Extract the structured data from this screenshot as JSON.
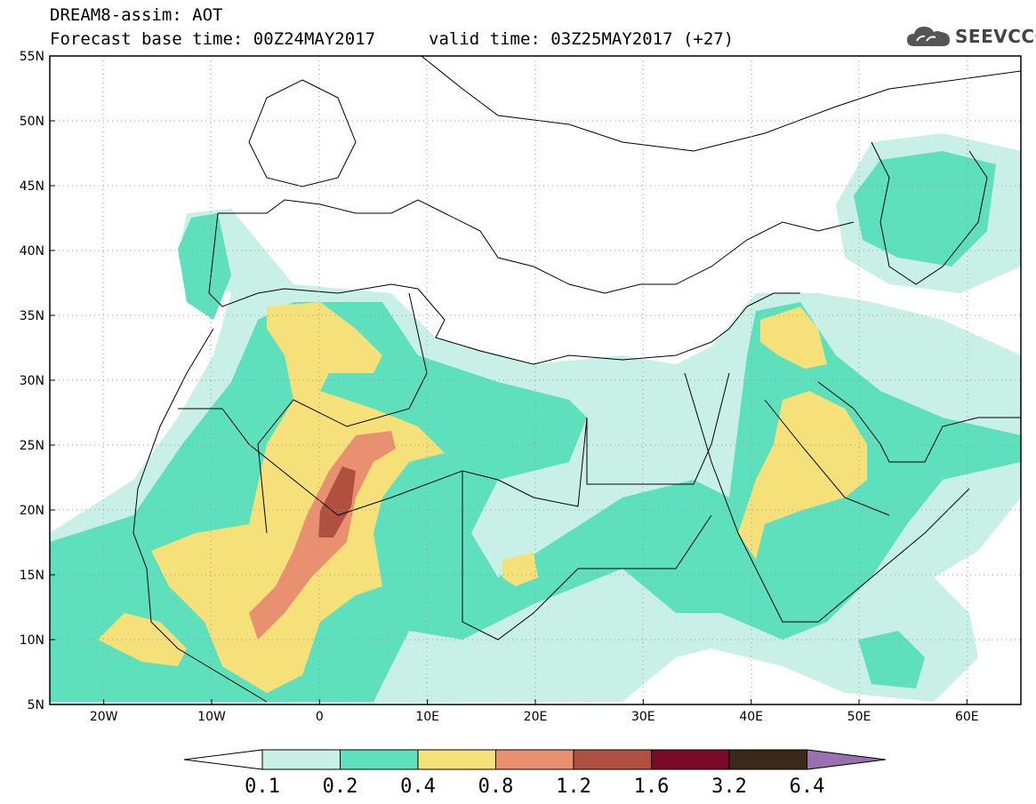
{
  "header": {
    "title": "DREAM8-assim: AOT",
    "base_time": "Forecast base time: 00Z24MAY2017",
    "valid_time": "valid time: 03Z25MAY2017 (+27)"
  },
  "logo": {
    "text": "SEEVCCC",
    "icon": "cloud-icon"
  },
  "map": {
    "lat_labels": [
      "55N",
      "50N",
      "45N",
      "40N",
      "35N",
      "30N",
      "25N",
      "20N",
      "15N",
      "10N",
      "5N"
    ],
    "lon_labels": [
      "20W",
      "10W",
      "0",
      "10E",
      "20E",
      "30E",
      "40E",
      "50E",
      "60E"
    ],
    "extent": {
      "lon": [
        -25,
        65
      ],
      "lat": [
        5,
        55
      ]
    }
  },
  "colorbar": {
    "labels": [
      "0.1",
      "0.2",
      "0.4",
      "0.8",
      "1.2",
      "1.6",
      "3.2",
      "6.4"
    ],
    "colors": [
      "#ffffff",
      "#c8f0e6",
      "#5ee0bc",
      "#f5e07a",
      "#e89070",
      "#b05040",
      "#7a0a28",
      "#3a2818",
      "#9a70b0"
    ]
  },
  "legend_colors": {
    "lt01": "#ffffff",
    "c01_02": "#c8f0e6",
    "c02_04": "#5ee0bc",
    "c04_08": "#f5e07a",
    "c08_12": "#e89070",
    "c12_16": "#b05040",
    "c16_32": "#7a0a28",
    "c32_64": "#3a2818",
    "gt64": "#9a70b0"
  }
}
